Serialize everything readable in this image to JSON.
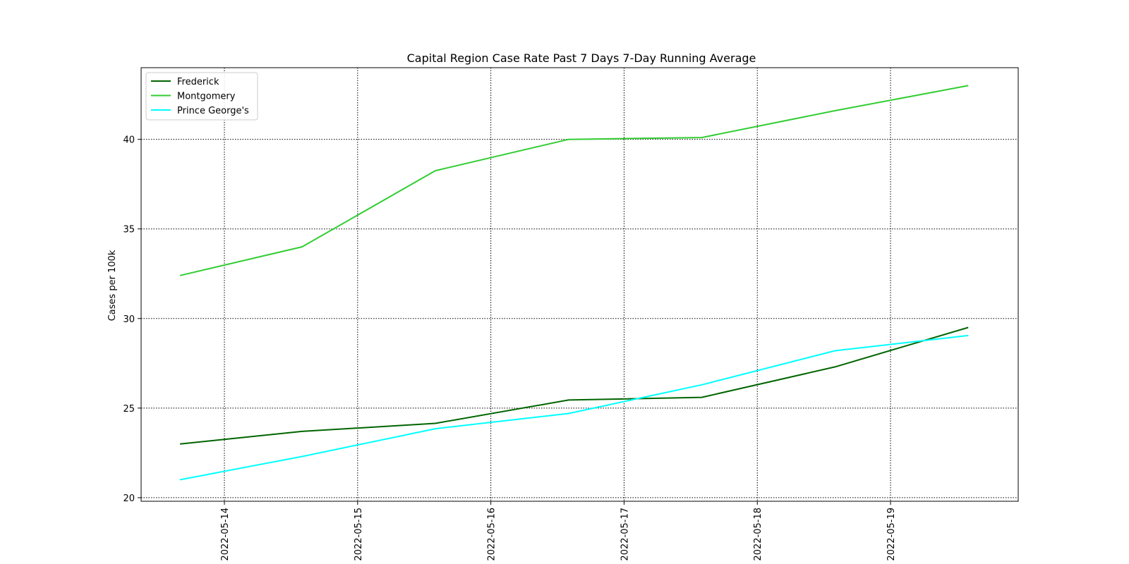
{
  "chart_data": {
    "type": "line",
    "title": "Capital Region Case Rate  Past 7 Days 7-Day Running Average",
    "xlabel": "",
    "ylabel": "Cases per 100k",
    "x": [
      "2022-05-13T16:00",
      "2022-05-14T14:00",
      "2022-05-15T14:00",
      "2022-05-16T14:00",
      "2022-05-17T14:00",
      "2022-05-18T14:00",
      "2022-05-19T14:00"
    ],
    "xticks": [
      "2022-05-14",
      "2022-05-15",
      "2022-05-16",
      "2022-05-17",
      "2022-05-18",
      "2022-05-19"
    ],
    "yticks": [
      20,
      25,
      30,
      35,
      40
    ],
    "xlim": [
      "2022-05-13T09:00",
      "2022-05-19T23:00"
    ],
    "ylim": [
      19.8,
      44.0
    ],
    "grid": true,
    "legend_position": "top-left",
    "series": [
      {
        "name": "Frederick",
        "color": "#006400",
        "values": [
          23.0,
          23.7,
          24.15,
          25.45,
          25.6,
          27.3,
          29.5
        ]
      },
      {
        "name": "Montgomery",
        "color": "#32cd32",
        "values": [
          32.4,
          34.0,
          38.25,
          40.0,
          40.1,
          41.6,
          43.0
        ]
      },
      {
        "name": "Prince George's",
        "color": "#00ffff",
        "values": [
          21.0,
          22.3,
          23.85,
          24.7,
          26.3,
          28.2,
          29.05
        ]
      }
    ]
  }
}
